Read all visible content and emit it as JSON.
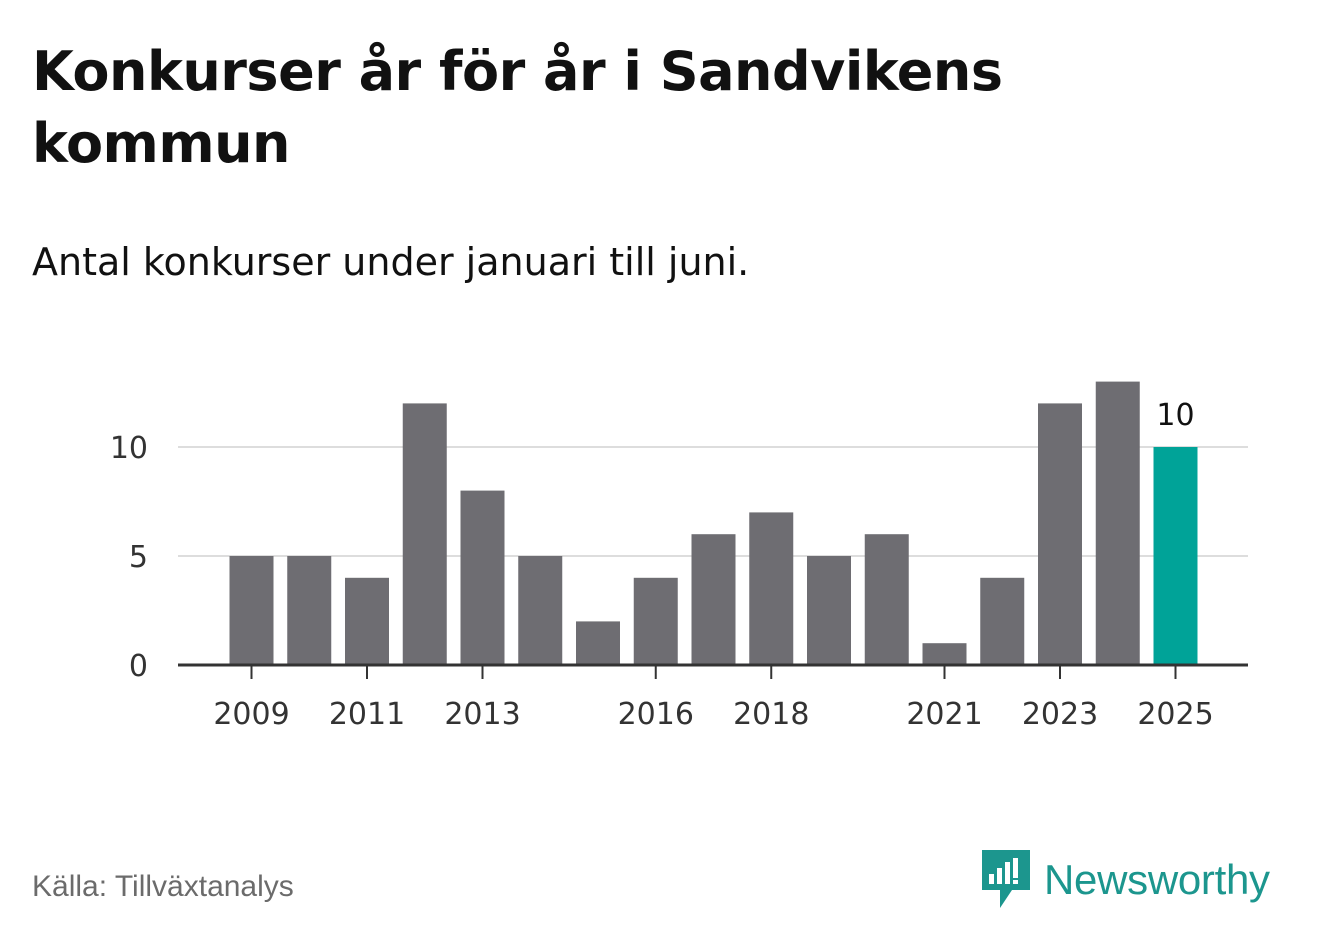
{
  "title": "Konkurser år för år i Sandvikens kommun",
  "subtitle": "Antal konkurser under januari till juni.",
  "source": "Källa: Tillväxtanalys",
  "logo": {
    "text": "Newsworthy",
    "icon": "newsworthy-bar-chart-icon"
  },
  "colors": {
    "bar": "#6e6d72",
    "highlight": "#00a398",
    "grid": "#dddddd",
    "axis": "#333333",
    "brand": "#1c968e"
  },
  "chart_data": {
    "type": "bar",
    "title": "Konkurser år för år i Sandvikens kommun",
    "subtitle": "Antal konkurser under januari till juni.",
    "categories": [
      "2009",
      "2010",
      "2011",
      "2012",
      "2013",
      "2014",
      "2015",
      "2016",
      "2017",
      "2018",
      "2019",
      "2020",
      "2021",
      "2022",
      "2023",
      "2024",
      "2025"
    ],
    "values": [
      5,
      5,
      4,
      12,
      8,
      5,
      2,
      4,
      6,
      7,
      5,
      6,
      1,
      4,
      12,
      13,
      10
    ],
    "x_tick_labels": [
      "2009",
      "2011",
      "2013",
      "2016",
      "2018",
      "2021",
      "2023",
      "2025"
    ],
    "y_ticks": [
      "0",
      "5",
      "10"
    ],
    "ylim": [
      0,
      13
    ],
    "highlight_category": "2025",
    "data_labels": [
      {
        "category": "2025",
        "text": "10"
      }
    ],
    "grid": true
  }
}
